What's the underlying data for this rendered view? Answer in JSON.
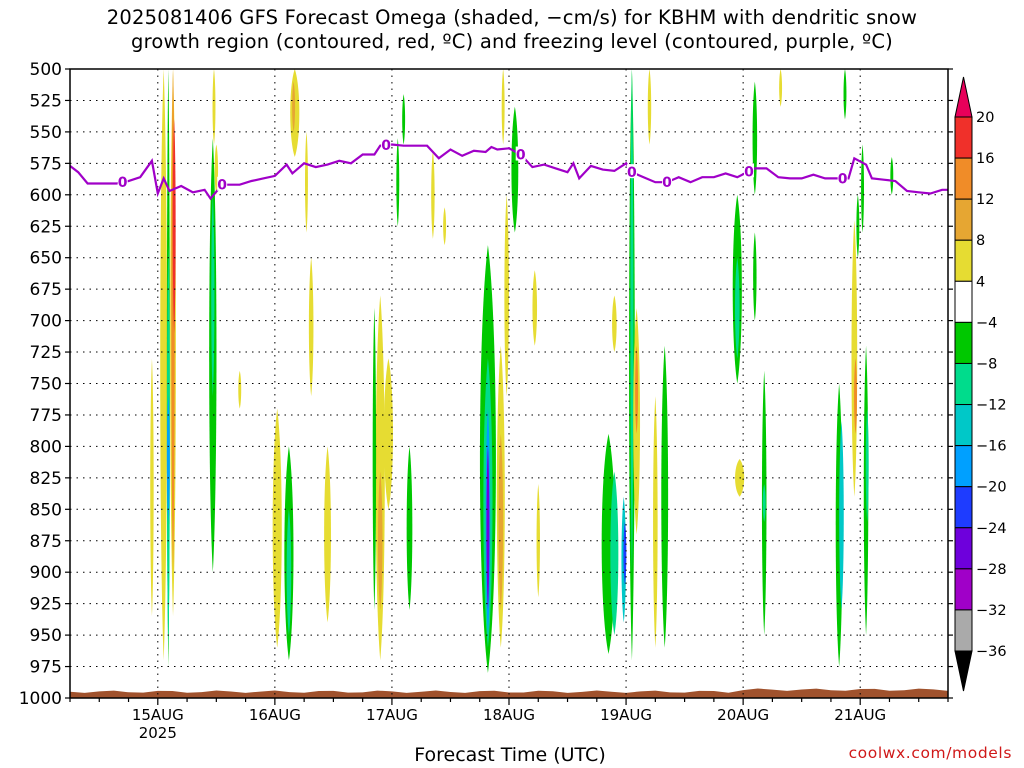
{
  "chart_data": {
    "type": "heatmap",
    "title": "2025081406 GFS Forecast Omega (shaded, −cm/s) for KBHM with dendritic snow",
    "subtitle": "growth region (contoured, red, ºC) and freezing level (contoured, purple, ºC)",
    "xlabel": "Forecast Time (UTC)",
    "ylabel": "",
    "x_axis": {
      "start_day": 14.25,
      "end_day": 21.75,
      "ticks": [
        {
          "day": 15,
          "label": "15AUG",
          "sublabel": "2025"
        },
        {
          "day": 16,
          "label": "16AUG",
          "sublabel": ""
        },
        {
          "day": 17,
          "label": "17AUG",
          "sublabel": ""
        },
        {
          "day": 18,
          "label": "18AUG",
          "sublabel": ""
        },
        {
          "day": 19,
          "label": "19AUG",
          "sublabel": ""
        },
        {
          "day": 20,
          "label": "20AUG",
          "sublabel": ""
        },
        {
          "day": 21,
          "label": "21AUG",
          "sublabel": ""
        }
      ]
    },
    "y_axis": {
      "range": [
        500,
        1000
      ],
      "ticks": [
        "500",
        "525",
        "550",
        "575",
        "600",
        "625",
        "650",
        "675",
        "700",
        "725",
        "750",
        "775",
        "800",
        "825",
        "850",
        "875",
        "900",
        "925",
        "950",
        "975",
        "1000"
      ]
    },
    "grid": true,
    "colorbar": {
      "placement": "right",
      "levels": [
        {
          "label": "20",
          "color": "#e8005a"
        },
        {
          "label": "16",
          "color": "#f0302a"
        },
        {
          "label": "12",
          "color": "#f08c28"
        },
        {
          "label": "8",
          "color": "#e6a632"
        },
        {
          "label": "4",
          "color": "#e6dc32"
        },
        {
          "label": "−4",
          "color": "#ffffff"
        },
        {
          "label": "−8",
          "color": "#00c800"
        },
        {
          "label": "−12",
          "color": "#00dc8c"
        },
        {
          "label": "−16",
          "color": "#00c8c8"
        },
        {
          "label": "−20",
          "color": "#00a0ff"
        },
        {
          "label": "−24",
          "color": "#1e3cff"
        },
        {
          "label": "−28",
          "color": "#6e00dc"
        },
        {
          "label": "−32",
          "color": "#a000c8"
        },
        {
          "label": "−36",
          "color": "#aaaaaa"
        }
      ],
      "lowest_color": "#000000"
    },
    "freezing_level": {
      "label": "0",
      "color": "#a000c8",
      "points": [
        [
          14.25,
          577
        ],
        [
          14.32,
          582
        ],
        [
          14.4,
          591
        ],
        [
          14.5,
          591
        ],
        [
          14.55,
          591
        ],
        [
          14.65,
          591
        ],
        [
          14.75,
          589
        ],
        [
          14.85,
          586
        ],
        [
          14.95,
          573
        ],
        [
          15.0,
          599
        ],
        [
          15.05,
          587
        ],
        [
          15.1,
          597
        ],
        [
          15.2,
          593
        ],
        [
          15.3,
          598
        ],
        [
          15.4,
          596
        ],
        [
          15.45,
          603
        ],
        [
          15.55,
          592
        ],
        [
          15.7,
          592
        ],
        [
          15.8,
          589
        ],
        [
          15.9,
          587
        ],
        [
          16.0,
          585
        ],
        [
          16.1,
          576
        ],
        [
          16.15,
          583
        ],
        [
          16.25,
          575
        ],
        [
          16.35,
          578
        ],
        [
          16.45,
          576
        ],
        [
          16.55,
          573
        ],
        [
          16.65,
          575
        ],
        [
          16.75,
          568
        ],
        [
          16.85,
          568
        ],
        [
          16.9,
          561
        ],
        [
          17.0,
          560
        ],
        [
          17.1,
          561
        ],
        [
          17.2,
          561
        ],
        [
          17.3,
          561
        ],
        [
          17.4,
          571
        ],
        [
          17.5,
          564
        ],
        [
          17.6,
          569
        ],
        [
          17.7,
          565
        ],
        [
          17.8,
          566
        ],
        [
          17.85,
          562
        ],
        [
          17.9,
          564
        ],
        [
          18.0,
          563
        ],
        [
          18.1,
          568
        ],
        [
          18.2,
          578
        ],
        [
          18.3,
          576
        ],
        [
          18.4,
          579
        ],
        [
          18.5,
          582
        ],
        [
          18.55,
          575
        ],
        [
          18.6,
          587
        ],
        [
          18.7,
          577
        ],
        [
          18.8,
          580
        ],
        [
          18.9,
          581
        ],
        [
          19.0,
          575
        ],
        [
          19.05,
          582
        ],
        [
          19.15,
          586
        ],
        [
          19.25,
          590
        ],
        [
          19.35,
          590
        ],
        [
          19.45,
          586
        ],
        [
          19.55,
          590
        ],
        [
          19.65,
          586
        ],
        [
          19.75,
          586
        ],
        [
          19.85,
          583
        ],
        [
          19.95,
          586
        ],
        [
          20.1,
          579
        ],
        [
          20.2,
          579
        ],
        [
          20.3,
          586
        ],
        [
          20.4,
          587
        ],
        [
          20.5,
          587
        ],
        [
          20.6,
          584
        ],
        [
          20.7,
          587
        ],
        [
          20.8,
          587
        ],
        [
          20.9,
          587
        ],
        [
          20.95,
          571
        ],
        [
          21.05,
          576
        ],
        [
          21.1,
          587
        ],
        [
          21.2,
          588
        ],
        [
          21.3,
          589
        ],
        [
          21.4,
          597
        ],
        [
          21.5,
          598
        ],
        [
          21.6,
          599
        ],
        [
          21.7,
          596
        ],
        [
          21.75,
          596
        ]
      ],
      "label_days": [
        14.7,
        15.55,
        16.95,
        18.1,
        19.05,
        19.35,
        20.05,
        20.85
      ]
    },
    "omega_regions": [
      {
        "day": 14.95,
        "top": 730,
        "bottom": 935,
        "hw": 0.015,
        "level": "4"
      },
      {
        "day": 15.05,
        "top": 500,
        "bottom": 970,
        "hw": 0.03,
        "level": "4"
      },
      {
        "day": 15.13,
        "top": 500,
        "bottom": 935,
        "hw": 0.025,
        "level": "4"
      },
      {
        "day": 15.13,
        "top": 500,
        "bottom": 900,
        "hw": 0.015,
        "level": "12"
      },
      {
        "day": 15.14,
        "top": 540,
        "bottom": 710,
        "hw": 0.008,
        "level": "16"
      },
      {
        "day": 15.09,
        "top": 500,
        "bottom": 975,
        "hw": 0.013,
        "level": "-8"
      },
      {
        "day": 15.09,
        "top": 640,
        "bottom": 960,
        "hw": 0.007,
        "level": "-12"
      },
      {
        "day": 15.09,
        "top": 760,
        "bottom": 860,
        "hw": 0.004,
        "level": "-20"
      },
      {
        "day": 15.48,
        "top": 500,
        "bottom": 560,
        "hw": 0.006,
        "level": "4"
      },
      {
        "day": 15.5,
        "top": 560,
        "bottom": 600,
        "hw": 0.015,
        "level": "4"
      },
      {
        "day": 15.47,
        "top": 555,
        "bottom": 900,
        "hw": 0.032,
        "level": "-8"
      },
      {
        "day": 15.47,
        "top": 600,
        "bottom": 760,
        "hw": 0.014,
        "level": "-12"
      },
      {
        "day": 15.7,
        "top": 740,
        "bottom": 770,
        "hw": 0.005,
        "level": "4"
      },
      {
        "day": 16.02,
        "top": 770,
        "bottom": 960,
        "hw": 0.04,
        "level": "4"
      },
      {
        "day": 16.12,
        "top": 800,
        "bottom": 970,
        "hw": 0.04,
        "level": "-8"
      },
      {
        "day": 16.12,
        "top": 850,
        "bottom": 950,
        "hw": 0.02,
        "level": "-12"
      },
      {
        "day": 16.17,
        "top": 500,
        "bottom": 570,
        "hw": 0.04,
        "level": "4"
      },
      {
        "day": 16.16,
        "top": 510,
        "bottom": 550,
        "hw": 0.012,
        "level": "8"
      },
      {
        "day": 16.27,
        "top": 550,
        "bottom": 630,
        "hw": 0.012,
        "level": "4"
      },
      {
        "day": 16.31,
        "top": 650,
        "bottom": 760,
        "hw": 0.02,
        "level": "4"
      },
      {
        "day": 16.45,
        "top": 800,
        "bottom": 940,
        "hw": 0.03,
        "level": "4"
      },
      {
        "day": 16.9,
        "top": 680,
        "bottom": 970,
        "hw": 0.04,
        "level": "4"
      },
      {
        "day": 16.85,
        "top": 690,
        "bottom": 930,
        "hw": 0.015,
        "level": "-8"
      },
      {
        "day": 16.97,
        "top": 730,
        "bottom": 850,
        "hw": 0.04,
        "level": "4"
      },
      {
        "day": 16.9,
        "top": 820,
        "bottom": 930,
        "hw": 0.02,
        "level": "8"
      },
      {
        "day": 17.15,
        "top": 800,
        "bottom": 930,
        "hw": 0.025,
        "level": "-8"
      },
      {
        "day": 17.05,
        "top": 555,
        "bottom": 625,
        "hw": 0.005,
        "level": "-8"
      },
      {
        "day": 17.35,
        "top": 565,
        "bottom": 635,
        "hw": 0.015,
        "level": "4"
      },
      {
        "day": 17.45,
        "top": 610,
        "bottom": 640,
        "hw": 0.01,
        "level": "4"
      },
      {
        "day": 17.1,
        "top": 520,
        "bottom": 560,
        "hw": 0.006,
        "level": "-8"
      },
      {
        "day": 17.82,
        "top": 640,
        "bottom": 980,
        "hw": 0.07,
        "level": "-8"
      },
      {
        "day": 17.82,
        "top": 730,
        "bottom": 960,
        "hw": 0.04,
        "level": "-12"
      },
      {
        "day": 17.82,
        "top": 770,
        "bottom": 950,
        "hw": 0.02,
        "level": "-20"
      },
      {
        "day": 17.82,
        "top": 800,
        "bottom": 930,
        "hw": 0.01,
        "level": "-28"
      },
      {
        "day": 17.93,
        "top": 720,
        "bottom": 960,
        "hw": 0.035,
        "level": "4"
      },
      {
        "day": 17.93,
        "top": 790,
        "bottom": 930,
        "hw": 0.02,
        "level": "8"
      },
      {
        "day": 17.98,
        "top": 600,
        "bottom": 760,
        "hw": 0.02,
        "level": "4"
      },
      {
        "day": 18.05,
        "top": 530,
        "bottom": 630,
        "hw": 0.03,
        "level": "-8"
      },
      {
        "day": 17.95,
        "top": 500,
        "bottom": 560,
        "hw": 0.01,
        "level": "4"
      },
      {
        "day": 18.22,
        "top": 660,
        "bottom": 720,
        "hw": 0.02,
        "level": "4"
      },
      {
        "day": 18.25,
        "top": 830,
        "bottom": 920,
        "hw": 0.015,
        "level": "4"
      },
      {
        "day": 18.85,
        "top": 790,
        "bottom": 965,
        "hw": 0.06,
        "level": "-8"
      },
      {
        "day": 18.9,
        "top": 820,
        "bottom": 950,
        "hw": 0.035,
        "level": "-12"
      },
      {
        "day": 18.98,
        "top": 840,
        "bottom": 940,
        "hw": 0.02,
        "level": "-16"
      },
      {
        "day": 18.99,
        "top": 860,
        "bottom": 910,
        "hw": 0.005,
        "level": "-24"
      },
      {
        "day": 19.05,
        "top": 500,
        "bottom": 970,
        "hw": 0.025,
        "level": "-8"
      },
      {
        "day": 19.05,
        "top": 500,
        "bottom": 900,
        "hw": 0.013,
        "level": "-12"
      },
      {
        "day": 18.9,
        "top": 680,
        "bottom": 725,
        "hw": 0.02,
        "level": "4"
      },
      {
        "day": 19.09,
        "top": 690,
        "bottom": 870,
        "hw": 0.03,
        "level": "4"
      },
      {
        "day": 19.09,
        "top": 720,
        "bottom": 790,
        "hw": 0.012,
        "level": "12"
      },
      {
        "day": 19.2,
        "top": 500,
        "bottom": 560,
        "hw": 0.015,
        "level": "4"
      },
      {
        "day": 19.25,
        "top": 760,
        "bottom": 960,
        "hw": 0.02,
        "level": "4"
      },
      {
        "day": 19.33,
        "top": 720,
        "bottom": 960,
        "hw": 0.03,
        "level": "-8"
      },
      {
        "day": 19.95,
        "top": 600,
        "bottom": 750,
        "hw": 0.04,
        "level": "-8"
      },
      {
        "day": 19.95,
        "top": 650,
        "bottom": 730,
        "hw": 0.02,
        "level": "-12"
      },
      {
        "day": 19.97,
        "top": 810,
        "bottom": 840,
        "hw": 0.04,
        "level": "4"
      },
      {
        "day": 20.1,
        "top": 510,
        "bottom": 600,
        "hw": 0.02,
        "level": "-8"
      },
      {
        "day": 20.1,
        "top": 630,
        "bottom": 700,
        "hw": 0.015,
        "level": "-8"
      },
      {
        "day": 20.18,
        "top": 740,
        "bottom": 950,
        "hw": 0.02,
        "level": "-8"
      },
      {
        "day": 20.18,
        "top": 830,
        "bottom": 860,
        "hw": 0.01,
        "level": "-12"
      },
      {
        "day": 20.32,
        "top": 500,
        "bottom": 530,
        "hw": 0.01,
        "level": "4"
      },
      {
        "day": 20.82,
        "top": 750,
        "bottom": 975,
        "hw": 0.03,
        "level": "-8"
      },
      {
        "day": 20.84,
        "top": 780,
        "bottom": 930,
        "hw": 0.02,
        "level": "-16"
      },
      {
        "day": 20.95,
        "top": 620,
        "bottom": 840,
        "hw": 0.025,
        "level": "4"
      },
      {
        "day": 20.96,
        "top": 730,
        "bottom": 790,
        "hw": 0.01,
        "level": "12"
      },
      {
        "day": 21.05,
        "top": 720,
        "bottom": 950,
        "hw": 0.02,
        "level": "-8"
      },
      {
        "day": 21.06,
        "top": 770,
        "bottom": 860,
        "hw": 0.01,
        "level": "-12"
      },
      {
        "day": 20.98,
        "top": 600,
        "bottom": 650,
        "hw": 0.01,
        "level": "-8"
      },
      {
        "day": 20.87,
        "top": 500,
        "bottom": 540,
        "hw": 0.01,
        "level": "-8"
      },
      {
        "day": 21.02,
        "top": 560,
        "bottom": 630,
        "hw": 0.012,
        "level": "-8"
      },
      {
        "day": 21.27,
        "top": 570,
        "bottom": 600,
        "hw": 0.01,
        "level": "-8"
      }
    ],
    "ground_level": 995,
    "ground_color": "#a0522d"
  },
  "credit": "coolwx.com/models"
}
